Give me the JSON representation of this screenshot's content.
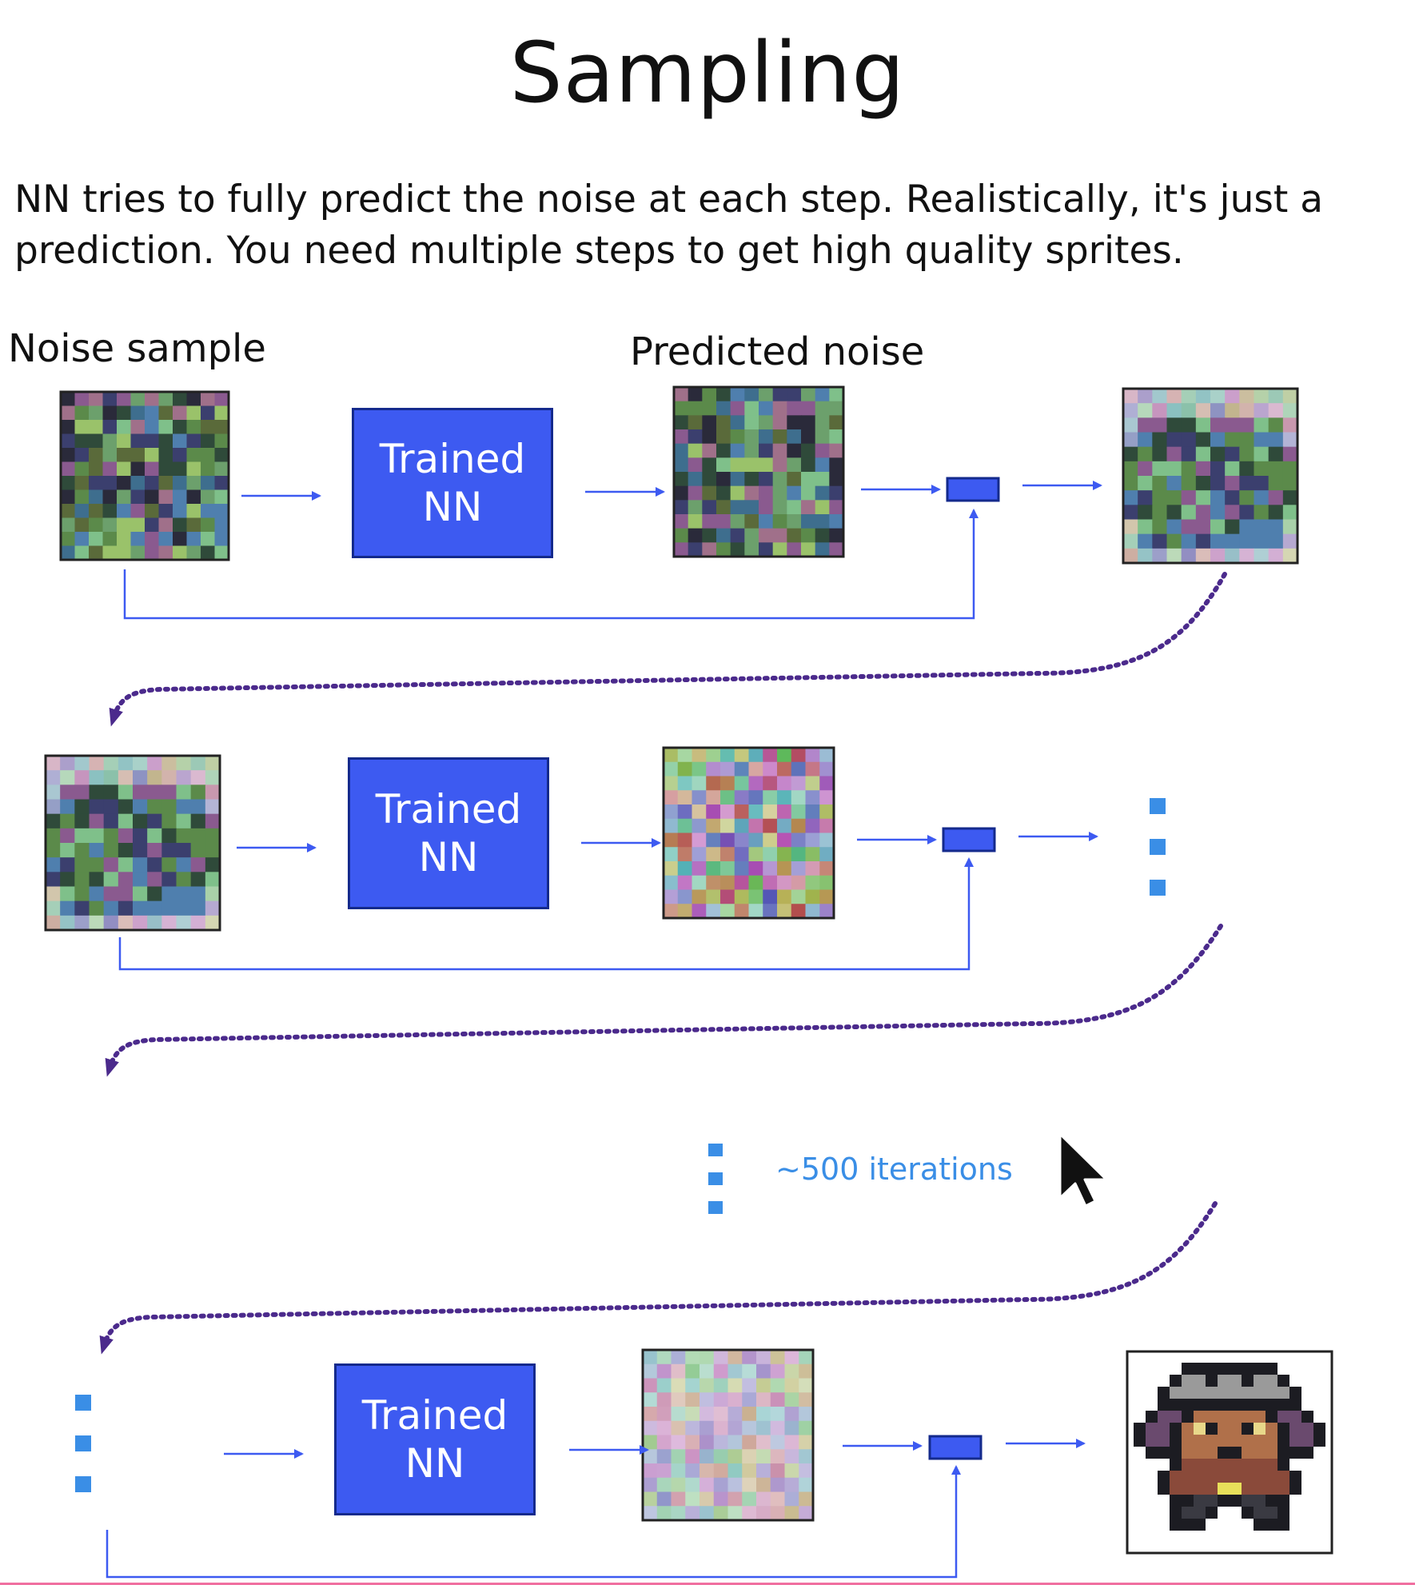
{
  "title": "Sampling",
  "description": {
    "line1": "NN tries to fully predict the noise at each step. Realistically, it's just a",
    "line2": "prediction. You need multiple steps to get high quality sprites."
  },
  "labels": {
    "noise_sample": "Noise sample",
    "predicted_noise": "Predicted noise"
  },
  "nn_block": {
    "line1": "Trained",
    "line2": "NN"
  },
  "iterations_label": "~500 iterations",
  "colors": {
    "nn_fill": "#3d5af1",
    "arrow": "#3d5af1",
    "dotted_arrow": "#4b2a8c",
    "ellipsis_dots": "#3a8ee6"
  },
  "icons": [
    "mouse-cursor-icon",
    "ellipsis-vertical-icon",
    "arrow-right-icon",
    "dotted-curve-arrow-icon"
  ]
}
